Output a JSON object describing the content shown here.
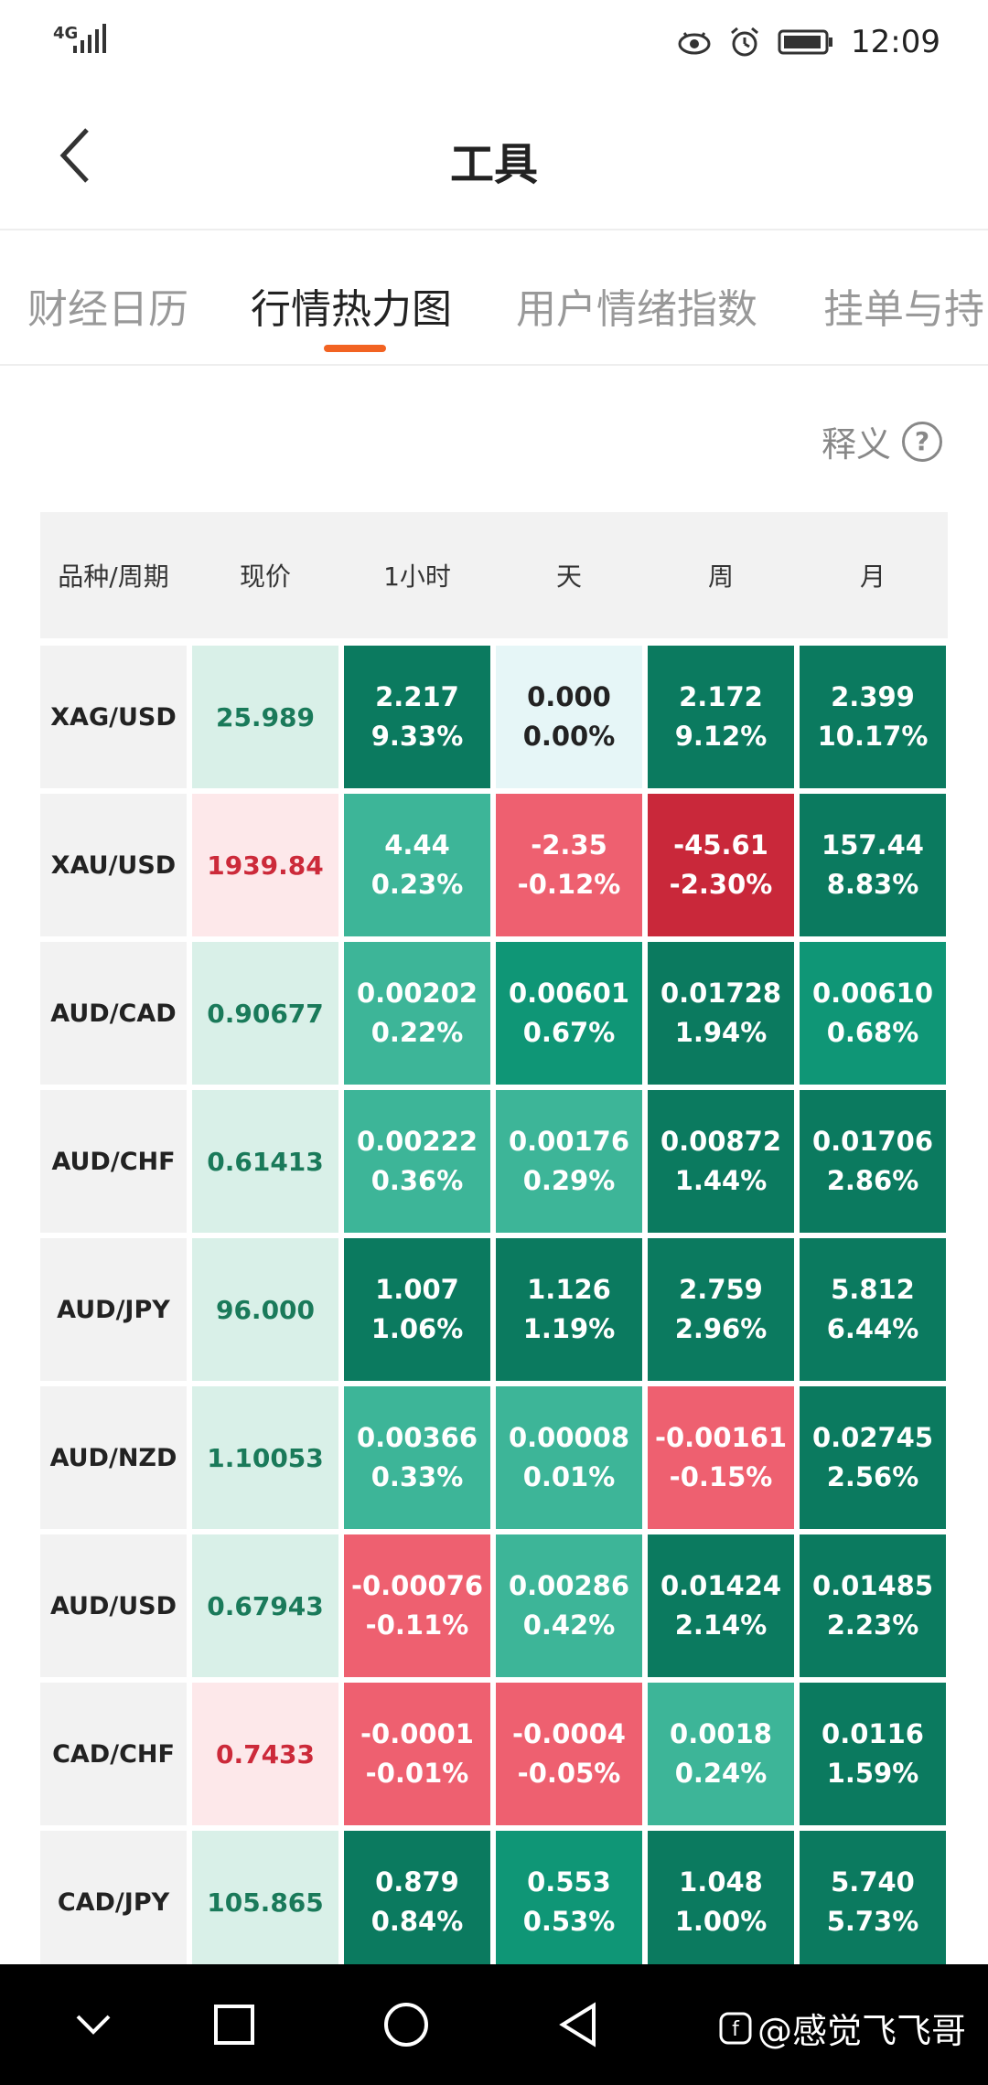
{
  "status": {
    "network": "4G",
    "time": "12:09",
    "icons": [
      "eye-icon",
      "alarm-icon",
      "battery-icon"
    ]
  },
  "title": "工具",
  "tabs": [
    {
      "label": "财经日历",
      "active": false
    },
    {
      "label": "行情热力图",
      "active": true
    },
    {
      "label": "用户情绪指数",
      "active": false
    },
    {
      "label": "挂单与持",
      "active": false
    }
  ],
  "explain": {
    "label": "释义",
    "icon": "?"
  },
  "table": {
    "headers": [
      "品种/周期",
      "现价",
      "1小时",
      "天",
      "周",
      "月"
    ],
    "rows": [
      {
        "symbol": "XAG/USD",
        "price": "25.989",
        "price_dir": "up",
        "h1": [
          "2.217",
          "9.33%"
        ],
        "d": [
          "0.000",
          "0.00%"
        ],
        "w": [
          "2.172",
          "9.12%"
        ],
        "m": [
          "2.399",
          "10.17%"
        ]
      },
      {
        "symbol": "XAU/USD",
        "price": "1939.84",
        "price_dir": "down",
        "h1": [
          "4.44",
          "0.23%"
        ],
        "d": [
          "-2.35",
          "-0.12%"
        ],
        "w": [
          "-45.61",
          "-2.30%"
        ],
        "m": [
          "157.44",
          "8.83%"
        ]
      },
      {
        "symbol": "AUD/CAD",
        "price": "0.90677",
        "price_dir": "up",
        "h1": [
          "0.00202",
          "0.22%"
        ],
        "d": [
          "0.00601",
          "0.67%"
        ],
        "w": [
          "0.01728",
          "1.94%"
        ],
        "m": [
          "0.00610",
          "0.68%"
        ]
      },
      {
        "symbol": "AUD/CHF",
        "price": "0.61413",
        "price_dir": "up",
        "h1": [
          "0.00222",
          "0.36%"
        ],
        "d": [
          "0.00176",
          "0.29%"
        ],
        "w": [
          "0.00872",
          "1.44%"
        ],
        "m": [
          "0.01706",
          "2.86%"
        ]
      },
      {
        "symbol": "AUD/JPY",
        "price": "96.000",
        "price_dir": "up",
        "h1": [
          "1.007",
          "1.06%"
        ],
        "d": [
          "1.126",
          "1.19%"
        ],
        "w": [
          "2.759",
          "2.96%"
        ],
        "m": [
          "5.812",
          "6.44%"
        ]
      },
      {
        "symbol": "AUD/NZD",
        "price": "1.10053",
        "price_dir": "up",
        "h1": [
          "0.00366",
          "0.33%"
        ],
        "d": [
          "0.00008",
          "0.01%"
        ],
        "w": [
          "-0.00161",
          "-0.15%"
        ],
        "m": [
          "0.02745",
          "2.56%"
        ]
      },
      {
        "symbol": "AUD/USD",
        "price": "0.67943",
        "price_dir": "up",
        "h1": [
          "-0.00076",
          "-0.11%"
        ],
        "d": [
          "0.00286",
          "0.42%"
        ],
        "w": [
          "0.01424",
          "2.14%"
        ],
        "m": [
          "0.01485",
          "2.23%"
        ]
      },
      {
        "symbol": "CAD/CHF",
        "price": "0.7433",
        "price_dir": "down",
        "h1": [
          "-0.0001",
          "-0.01%"
        ],
        "d": [
          "-0.0004",
          "-0.05%"
        ],
        "w": [
          "0.0018",
          "0.24%"
        ],
        "m": [
          "0.0116",
          "1.59%"
        ]
      },
      {
        "symbol": "CAD/JPY",
        "price": "105.865",
        "price_dir": "up",
        "h1": [
          "0.879",
          "0.84%"
        ],
        "d": [
          "0.553",
          "0.53%"
        ],
        "w": [
          "1.048",
          "1.00%"
        ],
        "m": [
          "5.740",
          "5.73%"
        ]
      }
    ]
  },
  "colors": {
    "accent": "#f26322",
    "up_price_bg": "#d9f0e8",
    "up_price_text": "#1a7a5a",
    "down_price_bg": "#fde8ea",
    "down_price_text": "#cc2a3a",
    "neutral_bg": "#e6f6f7",
    "green_strong": "#0b7a5f",
    "green_mid": "#0f9676",
    "green_light": "#3db598",
    "red_light": "#ee6070",
    "red_strong": "#c9283a"
  },
  "watermark": "@感觉飞飞哥",
  "nav": [
    "chevron-down-icon",
    "square-icon",
    "circle-icon",
    "back-triangle-icon"
  ]
}
